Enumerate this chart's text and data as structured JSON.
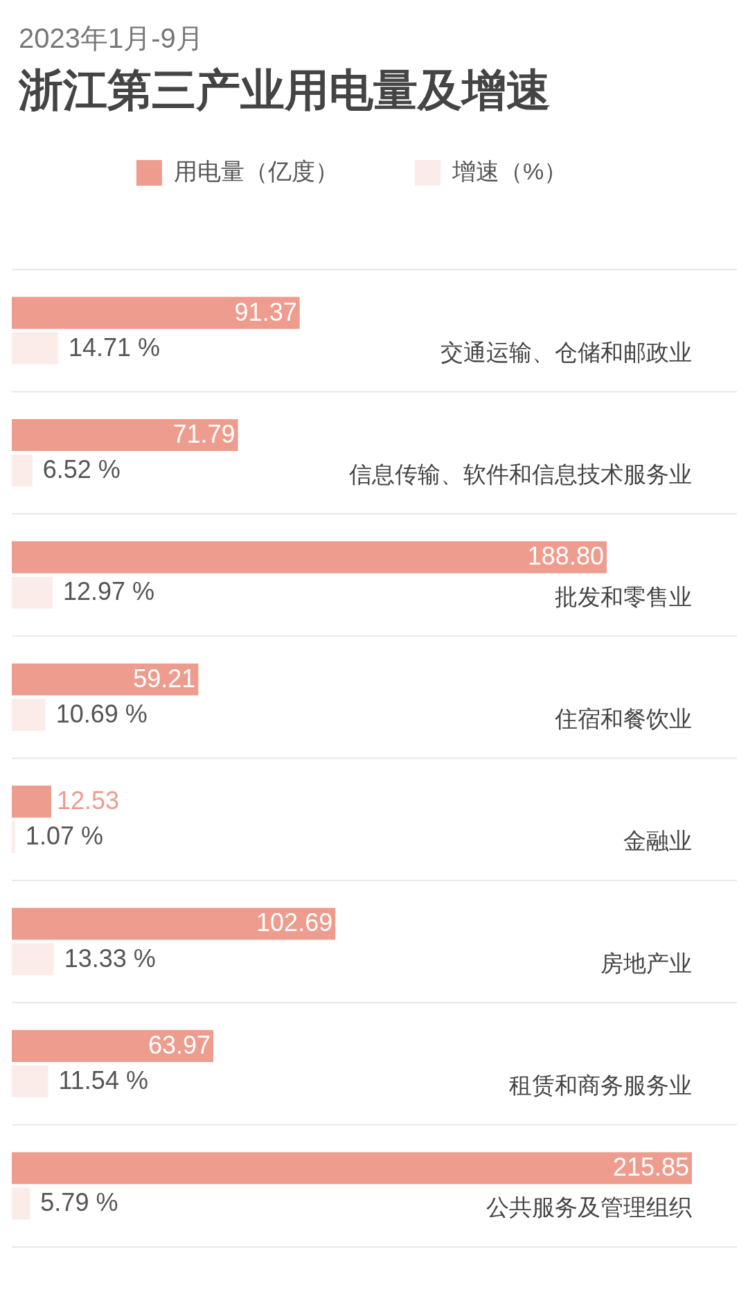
{
  "chart_data": {
    "type": "bar",
    "orientation": "horizontal",
    "subtitle": "2023年1月-9月",
    "title": "浙江第三产业用电量及增速",
    "categories": [
      "交通运输、仓储和邮政业",
      "信息传输、软件和信息技术服务业",
      "批发和零售业",
      "住宿和餐饮业",
      "金融业",
      "房地产业",
      "租赁和商务服务业",
      "公共服务及管理组织"
    ],
    "series": [
      {
        "name": "用电量（亿度）",
        "color": "#ed9c8e",
        "values": [
          91.37,
          71.79,
          188.8,
          59.21,
          12.53,
          102.69,
          63.97,
          215.85
        ],
        "value_labels": [
          "91.37",
          "71.79",
          "188.80",
          "59.21",
          "12.53",
          "102.69",
          "63.97",
          "215.85"
        ]
      },
      {
        "name": "增速（%）",
        "color": "#fbecea",
        "values": [
          14.71,
          6.52,
          12.97,
          10.69,
          1.07,
          13.33,
          11.54,
          5.79
        ],
        "value_labels": [
          "14.71 %",
          "6.52 %",
          "12.97 %",
          "10.69 %",
          "1.07 %",
          "13.33 %",
          "11.54 %",
          "5.79 %"
        ]
      }
    ],
    "legend": "top",
    "grid": "y",
    "tick_labels": "y"
  }
}
